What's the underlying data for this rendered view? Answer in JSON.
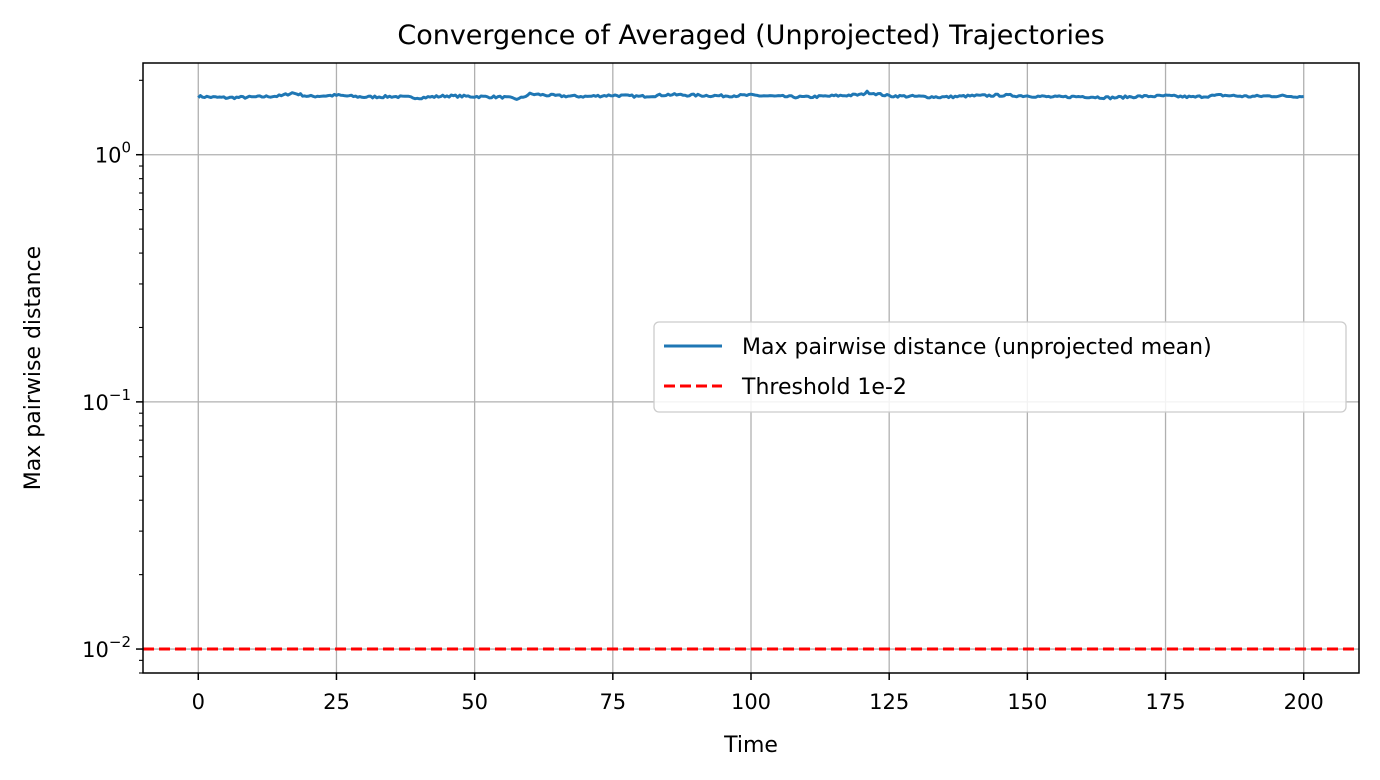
{
  "chart_data": {
    "type": "line",
    "title": "Convergence of Averaged (Unprojected) Trajectories",
    "xlabel": "Time",
    "ylabel": "Max pairwise distance",
    "xlim": [
      -10,
      210
    ],
    "ylim": [
      0.008,
      2.35
    ],
    "yscale": "log",
    "grid": true,
    "legend_position": "center-right",
    "x_ticks": [
      0,
      25,
      50,
      75,
      100,
      125,
      150,
      175,
      200
    ],
    "y_ticks": [
      {
        "value": 1,
        "base": "10",
        "exp": "0"
      },
      {
        "value": 0.1,
        "base": "10",
        "exp": "−1"
      },
      {
        "value": 0.01,
        "base": "10",
        "exp": "−2"
      }
    ],
    "series": [
      {
        "name": "Max pairwise distance (unprojected mean)",
        "color": "#1f77b4",
        "style": "solid",
        "x": [
          0,
          5,
          10,
          15,
          17,
          20,
          25,
          30,
          35,
          40,
          45,
          50,
          55,
          58,
          60,
          65,
          70,
          75,
          80,
          85,
          90,
          95,
          100,
          105,
          110,
          115,
          120,
          121,
          125,
          130,
          135,
          140,
          145,
          150,
          155,
          160,
          165,
          170,
          175,
          180,
          185,
          190,
          195,
          200
        ],
        "y": [
          1.72,
          1.7,
          1.71,
          1.73,
          1.78,
          1.72,
          1.74,
          1.71,
          1.72,
          1.7,
          1.73,
          1.72,
          1.71,
          1.68,
          1.76,
          1.73,
          1.72,
          1.74,
          1.72,
          1.75,
          1.74,
          1.73,
          1.74,
          1.72,
          1.71,
          1.73,
          1.75,
          1.79,
          1.73,
          1.72,
          1.71,
          1.73,
          1.74,
          1.73,
          1.71,
          1.72,
          1.7,
          1.72,
          1.73,
          1.71,
          1.74,
          1.72,
          1.73,
          1.72
        ]
      },
      {
        "name": "Threshold 1e-2",
        "color": "#ff0000",
        "style": "dashed",
        "y_constant": 0.01
      }
    ]
  }
}
